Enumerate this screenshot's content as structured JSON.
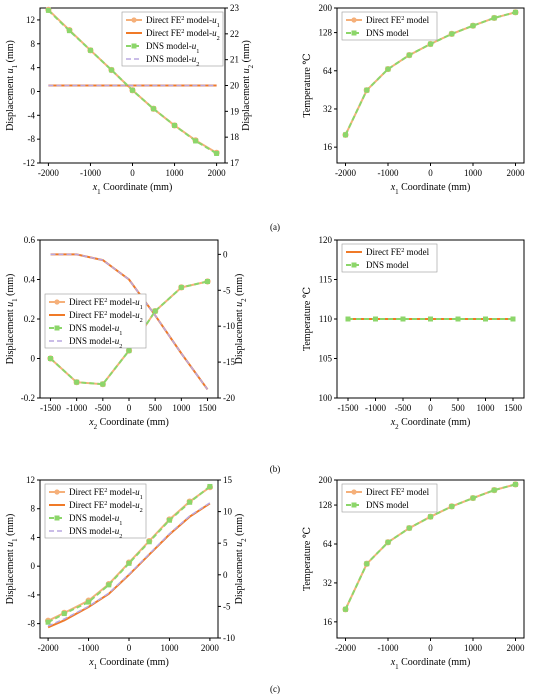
{
  "colors": {
    "direct_u1": "#F5B07A",
    "direct_u2": "#F07A28",
    "dns_u1": "#8CD66A",
    "dns_u2": "#B9A7E0"
  },
  "captions": [
    "(a)",
    "(b)",
    "(c)"
  ],
  "chart_data": [
    {
      "id": "a1",
      "type": "line",
      "title": "",
      "xlabel": "x1 Coordinate (mm)",
      "ylabel": "Displacement u1 (mm)",
      "y2label": "Displacement u2 (mm)",
      "xlim": [
        -2200,
        2200
      ],
      "ylim": [
        -12,
        14
      ],
      "y2lim": [
        17,
        23
      ],
      "xticks": [
        -2000,
        -1000,
        0,
        1000,
        2000
      ],
      "yticks": [
        -12,
        -8,
        -4,
        0,
        4,
        8,
        12
      ],
      "y2ticks": [
        17,
        18,
        19,
        20,
        21,
        22,
        23
      ],
      "legend": "top-right",
      "grid": false,
      "series": [
        {
          "name": "Direct FE2 model-u1",
          "axis": "y1",
          "style": "direct_u1",
          "x": [
            -2000,
            -1500,
            -1000,
            -500,
            0,
            500,
            1000,
            1500,
            2000
          ],
          "values": [
            13.7,
            10.3,
            6.9,
            3.6,
            0.2,
            -2.9,
            -5.7,
            -8.2,
            -10.3
          ]
        },
        {
          "name": "Direct FE2 model-u2",
          "axis": "y2",
          "style": "direct_u2",
          "x": [
            -2000,
            -1500,
            -1000,
            -500,
            0,
            500,
            1000,
            1500,
            2000
          ],
          "values": [
            20,
            20,
            20,
            20,
            20,
            20,
            20,
            20,
            20
          ]
        },
        {
          "name": "DNS model-u1",
          "axis": "y1",
          "style": "dns_u1",
          "x": [
            -2000,
            -1500,
            -1000,
            -500,
            0,
            500,
            1000,
            1500,
            2000
          ],
          "values": [
            13.6,
            10.2,
            6.9,
            3.6,
            0.2,
            -2.9,
            -5.7,
            -8.3,
            -10.4
          ]
        },
        {
          "name": "DNS model-u2",
          "axis": "y2",
          "style": "dns_u2",
          "x": [
            -2000,
            -1500,
            -1000,
            -500,
            0,
            500,
            1000,
            1500,
            2000
          ],
          "values": [
            20,
            20,
            20,
            20,
            20,
            20,
            20,
            20,
            20
          ]
        }
      ]
    },
    {
      "id": "a2",
      "type": "line",
      "title": "",
      "xlabel": "x1 Coordinate (mm)",
      "ylabel": "Temperature ℃",
      "yscale": "log2",
      "xlim": [
        -2200,
        2200
      ],
      "ylim": [
        12,
        200
      ],
      "xticks": [
        -2000,
        -1000,
        0,
        1000,
        2000
      ],
      "yticks": [
        16,
        32,
        64,
        128,
        200
      ],
      "legend": "top-left",
      "grid": false,
      "series": [
        {
          "name": "Direct FE2 model",
          "axis": "y1",
          "style": "direct_u1",
          "x": [
            -2000,
            -1500,
            -1000,
            -500,
            0,
            500,
            1000,
            1500,
            2000
          ],
          "values": [
            20,
            45,
            66,
            85,
            104,
            125,
            145,
            167,
            185
          ]
        },
        {
          "name": "DNS model",
          "axis": "y1",
          "style": "dns_u1",
          "x": [
            -2000,
            -1500,
            -1000,
            -500,
            0,
            500,
            1000,
            1500,
            2000
          ],
          "values": [
            20,
            45,
            66,
            85,
            104,
            125,
            145,
            167,
            185
          ]
        }
      ]
    },
    {
      "id": "b1",
      "type": "line",
      "title": "",
      "xlabel": "x2 Coordinate (mm)",
      "ylabel": "Displacement u1 (mm)",
      "y2label": "Displacement u2 (mm)",
      "xlim": [
        -1700,
        1700
      ],
      "ylim": [
        -0.2,
        0.6
      ],
      "y2lim": [
        -20,
        2
      ],
      "xticks": [
        -1500,
        -1000,
        -500,
        0,
        500,
        1000,
        1500
      ],
      "yticks": [
        -0.2,
        0.0,
        0.2,
        0.4,
        0.6
      ],
      "y2ticks": [
        -20,
        -15,
        -10,
        -5,
        0
      ],
      "legend": "center-left",
      "grid": false,
      "series": [
        {
          "name": "Direct FE2 model-u1",
          "axis": "y1",
          "style": "direct_u1",
          "x": [
            -1500,
            -1000,
            -500,
            0,
            500,
            1000,
            1500
          ],
          "values": [
            0.0,
            -0.12,
            -0.13,
            0.04,
            0.24,
            0.36,
            0.39
          ]
        },
        {
          "name": "Direct FE2 model-u2",
          "axis": "y2",
          "style": "direct_u2",
          "x": [
            -1500,
            -1000,
            -500,
            0,
            500,
            1000,
            1500
          ],
          "values": [
            0,
            0,
            -0.8,
            -3.5,
            -8.5,
            -13.8,
            -18.8
          ]
        },
        {
          "name": "DNS model-u1",
          "axis": "y1",
          "style": "dns_u1",
          "x": [
            -1500,
            -1000,
            -500,
            0,
            500,
            1000,
            1500
          ],
          "values": [
            0.0,
            -0.12,
            -0.13,
            0.04,
            0.24,
            0.36,
            0.39
          ]
        },
        {
          "name": "DNS model-u2",
          "axis": "y2",
          "style": "dns_u2",
          "x": [
            -1500,
            -1000,
            -500,
            0,
            500,
            1000,
            1500
          ],
          "values": [
            0,
            0,
            -0.8,
            -3.5,
            -8.5,
            -13.8,
            -18.8
          ]
        }
      ]
    },
    {
      "id": "b2",
      "type": "line",
      "title": "",
      "xlabel": "x2 Coordinate (mm)",
      "ylabel": "Temperature ℃",
      "xlim": [
        -1700,
        1700
      ],
      "ylim": [
        100,
        120
      ],
      "xticks": [
        -1500,
        -1000,
        -500,
        0,
        500,
        1000,
        1500
      ],
      "yticks": [
        100,
        105,
        110,
        115,
        120
      ],
      "legend": "top-left",
      "grid": false,
      "series": [
        {
          "name": "Direct FE2 model",
          "axis": "y1",
          "style": "direct_u2",
          "x": [
            -1500,
            -1000,
            -500,
            0,
            500,
            1000,
            1500
          ],
          "values": [
            110,
            110,
            110,
            110,
            110,
            110,
            110
          ]
        },
        {
          "name": "DNS model",
          "axis": "y1",
          "style": "dns_u1",
          "x": [
            -1500,
            -1000,
            -500,
            0,
            500,
            1000,
            1500
          ],
          "values": [
            110,
            110,
            110,
            110,
            110,
            110,
            110
          ]
        }
      ]
    },
    {
      "id": "c1",
      "type": "line",
      "title": "",
      "xlabel": "x1 Coordinate (mm)",
      "ylabel": "Displacement u1 (mm)",
      "y2label": "Displacement u2 (mm)",
      "xlim": [
        -2200,
        2200
      ],
      "ylim": [
        -10,
        12
      ],
      "y2lim": [
        -10,
        15
      ],
      "xticks": [
        -2000,
        -1000,
        0,
        1000,
        2000
      ],
      "yticks": [
        -8,
        -4,
        0,
        4,
        8,
        12
      ],
      "y2ticks": [
        -10,
        -5,
        0,
        5,
        10,
        15
      ],
      "legend": "top-left",
      "grid": false,
      "series": [
        {
          "name": "Direct FE2 model-u1",
          "axis": "y1",
          "style": "direct_u1",
          "x": [
            -2000,
            -1600,
            -1000,
            -500,
            0,
            500,
            1000,
            1500,
            2000
          ],
          "values": [
            -7.6,
            -6.5,
            -4.8,
            -2.5,
            0.5,
            3.5,
            6.5,
            9.0,
            11.0
          ]
        },
        {
          "name": "Direct FE2 model-u2",
          "axis": "y2",
          "style": "direct_u2",
          "x": [
            -2000,
            -1600,
            -1000,
            -500,
            0,
            500,
            1000,
            1500,
            2000
          ],
          "values": [
            -8.3,
            -7.2,
            -5.1,
            -3.0,
            0.0,
            3.2,
            6.4,
            9.2,
            11.3
          ]
        },
        {
          "name": "DNS model-u1",
          "axis": "y1",
          "style": "dns_u1",
          "x": [
            -2000,
            -1600,
            -1000,
            -500,
            0,
            500,
            1000,
            1500,
            2000
          ],
          "values": [
            -7.8,
            -6.6,
            -5.0,
            -2.6,
            0.4,
            3.4,
            6.4,
            8.9,
            11.1
          ]
        },
        {
          "name": "DNS model-u2",
          "axis": "y2",
          "style": "dns_u2",
          "x": [
            -2000,
            -1600,
            -1000,
            -500,
            0,
            500,
            1000,
            1500,
            2000
          ],
          "values": [
            -8.1,
            -7.0,
            -5.0,
            -2.9,
            0.1,
            3.3,
            6.5,
            9.3,
            11.4
          ]
        }
      ]
    },
    {
      "id": "c2",
      "type": "line",
      "title": "",
      "xlabel": "x1 Coordinate (mm)",
      "ylabel": "Temperature ℃",
      "yscale": "log2",
      "xlim": [
        -2200,
        2200
      ],
      "ylim": [
        12,
        200
      ],
      "xticks": [
        -2000,
        -1000,
        0,
        1000,
        2000
      ],
      "yticks": [
        16,
        32,
        64,
        128,
        200
      ],
      "legend": "top-left",
      "grid": false,
      "series": [
        {
          "name": "Direct FE2 model",
          "axis": "y1",
          "style": "direct_u1",
          "x": [
            -2000,
            -1500,
            -1000,
            -500,
            0,
            500,
            1000,
            1500,
            2000
          ],
          "values": [
            20,
            45,
            66,
            85,
            104,
            125,
            145,
            167,
            185
          ]
        },
        {
          "name": "DNS model",
          "axis": "y1",
          "style": "dns_u1",
          "x": [
            -2000,
            -1500,
            -1000,
            -500,
            0,
            500,
            1000,
            1500,
            2000
          ],
          "values": [
            20,
            45,
            66,
            85,
            104,
            125,
            145,
            167,
            185
          ]
        }
      ]
    }
  ]
}
